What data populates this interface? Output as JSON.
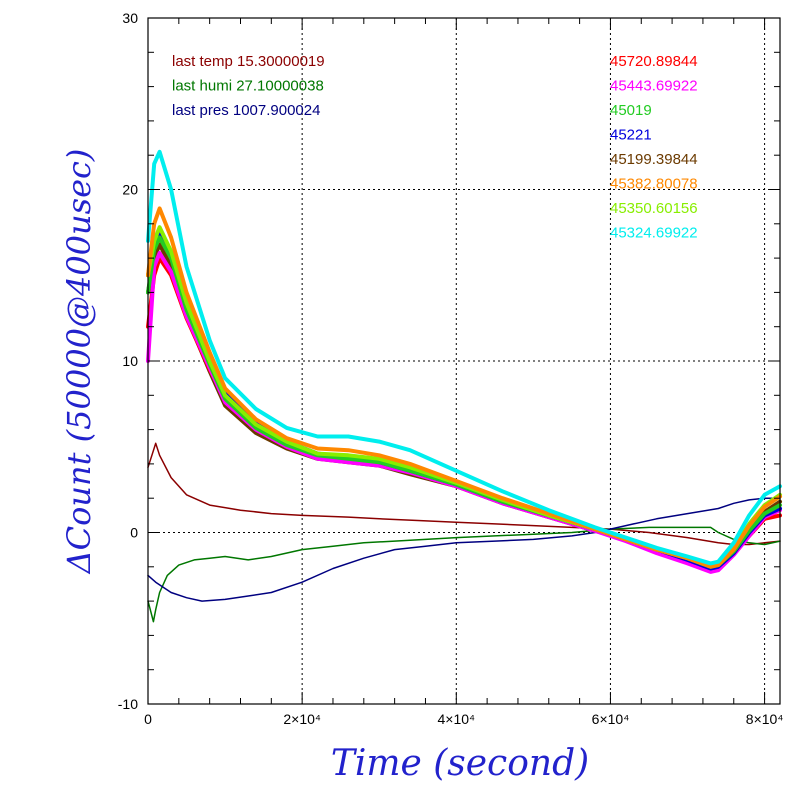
{
  "chart_data": {
    "type": "line",
    "title": "",
    "xlabel": "Time (second)",
    "ylabel": "ΔCount (50000@400usec)",
    "xlim": [
      0,
      82000
    ],
    "ylim": [
      -10,
      30
    ],
    "grid": true,
    "x_ticks": [
      {
        "value": 0,
        "label": "0"
      },
      {
        "value": 20000,
        "label": "2×10⁴"
      },
      {
        "value": 40000,
        "label": "4×10⁴"
      },
      {
        "value": 60000,
        "label": "6×10⁴"
      },
      {
        "value": 80000,
        "label": "8×10⁴"
      }
    ],
    "y_ticks": [
      {
        "value": -10,
        "label": "-10"
      },
      {
        "value": 0,
        "label": "0"
      },
      {
        "value": 10,
        "label": "10"
      },
      {
        "value": 20,
        "label": "20"
      },
      {
        "value": 30,
        "label": "30"
      }
    ],
    "legend_left": [
      {
        "text": "last temp 15.30000019",
        "color": "#8b0000"
      },
      {
        "text": "last humi 27.10000038",
        "color": "#007700"
      },
      {
        "text": "last pres 1007.900024",
        "color": "#000080"
      }
    ],
    "legend_right": [
      {
        "text": "45720.89844",
        "color": "#ff0000"
      },
      {
        "text": "45443.69922",
        "color": "#ff00ff"
      },
      {
        "text": "45019",
        "color": "#22cc22"
      },
      {
        "text": "45221",
        "color": "#0000dd"
      },
      {
        "text": "45199.39844",
        "color": "#6b3a00"
      },
      {
        "text": "45382.80078",
        "color": "#ff8800"
      },
      {
        "text": "45350.60156",
        "color": "#88ee00"
      },
      {
        "text": "45324.69922",
        "color": "#00eeee"
      }
    ],
    "series": [
      {
        "name": "45720.89844",
        "color": "#ff0000",
        "width": 4,
        "x": [
          0,
          800,
          1500,
          3000,
          5000,
          8000,
          10000,
          14000,
          18000,
          22000,
          26000,
          30000,
          34000,
          40000,
          46000,
          52000,
          58000,
          62000,
          66000,
          70000,
          73000,
          74000,
          76000,
          78000,
          80000,
          82000
        ],
        "y": [
          12,
          15,
          16,
          15,
          12.5,
          9.5,
          7.8,
          6.2,
          5.2,
          4.5,
          4.3,
          4.1,
          3.6,
          2.8,
          1.8,
          1.0,
          0.2,
          -0.4,
          -1.0,
          -1.6,
          -2.1,
          -2.0,
          -1.2,
          -0.2,
          0.8,
          1.0
        ]
      },
      {
        "name": "45443.69922",
        "color": "#ff00ff",
        "width": 4,
        "x": [
          0,
          800,
          1500,
          3000,
          5000,
          8000,
          10000,
          14000,
          18000,
          22000,
          26000,
          30000,
          34000,
          40000,
          46000,
          52000,
          58000,
          62000,
          66000,
          70000,
          73000,
          74000,
          76000,
          78000,
          80000,
          82000
        ],
        "y": [
          10,
          15.5,
          16.3,
          15.2,
          12.6,
          9.6,
          7.6,
          6.0,
          5.0,
          4.3,
          4.1,
          3.9,
          3.5,
          2.7,
          1.7,
          0.9,
          0.1,
          -0.5,
          -1.2,
          -1.8,
          -2.3,
          -2.2,
          -1.3,
          -0.2,
          0.9,
          1.3
        ]
      },
      {
        "name": "45019",
        "color": "#22cc22",
        "width": 4,
        "x": [
          0,
          800,
          1500,
          3000,
          5000,
          8000,
          10000,
          14000,
          18000,
          22000,
          26000,
          30000,
          34000,
          40000,
          46000,
          52000,
          58000,
          62000,
          66000,
          70000,
          73000,
          74000,
          76000,
          78000,
          80000,
          82000
        ],
        "y": [
          14,
          16.5,
          17.2,
          16,
          13,
          9.8,
          7.8,
          6.1,
          5.1,
          4.5,
          4.3,
          4.1,
          3.6,
          2.8,
          1.8,
          1.0,
          0.2,
          -0.4,
          -1.0,
          -1.5,
          -2.0,
          -1.9,
          -1.1,
          0.1,
          1.1,
          1.6
        ]
      },
      {
        "name": "45221",
        "color": "#0000dd",
        "width": 4,
        "x": [
          0,
          800,
          1500,
          3000,
          5000,
          8000,
          10000,
          14000,
          18000,
          22000,
          26000,
          30000,
          34000,
          40000,
          46000,
          52000,
          58000,
          62000,
          66000,
          70000,
          73000,
          74000,
          76000,
          78000,
          80000,
          82000
        ],
        "y": [
          15,
          17,
          17.4,
          16.2,
          13.3,
          10.2,
          8.2,
          6.4,
          5.3,
          4.6,
          4.4,
          4.1,
          3.6,
          2.8,
          1.8,
          1.0,
          0.2,
          -0.4,
          -1.0,
          -1.6,
          -2.1,
          -2.0,
          -1.2,
          0.0,
          1.0,
          1.4
        ]
      },
      {
        "name": "45199.39844",
        "color": "#6b3a00",
        "width": 4,
        "x": [
          0,
          800,
          1500,
          3000,
          5000,
          8000,
          10000,
          14000,
          18000,
          22000,
          26000,
          30000,
          34000,
          40000,
          46000,
          52000,
          58000,
          62000,
          66000,
          70000,
          73000,
          74000,
          76000,
          78000,
          80000,
          82000
        ],
        "y": [
          14,
          16,
          16.8,
          15.5,
          12.6,
          9.4,
          7.4,
          5.8,
          4.9,
          4.3,
          4.1,
          3.9,
          3.4,
          2.7,
          1.7,
          0.9,
          0.1,
          -0.4,
          -1.0,
          -1.6,
          -2.0,
          -1.9,
          -1.0,
          0.2,
          1.2,
          1.8
        ]
      },
      {
        "name": "45382.80078",
        "color": "#ff8800",
        "width": 4,
        "x": [
          0,
          800,
          1500,
          3000,
          5000,
          8000,
          10000,
          14000,
          18000,
          22000,
          26000,
          30000,
          34000,
          40000,
          46000,
          52000,
          58000,
          62000,
          66000,
          70000,
          73000,
          74000,
          76000,
          78000,
          80000,
          82000
        ],
        "y": [
          15,
          18,
          18.9,
          17.2,
          14,
          10.5,
          8.4,
          6.6,
          5.5,
          4.9,
          4.8,
          4.5,
          4.0,
          3.0,
          2.0,
          1.1,
          0.2,
          -0.4,
          -1.0,
          -1.5,
          -2.0,
          -1.9,
          -1.0,
          0.4,
          1.5,
          2.1
        ]
      },
      {
        "name": "45350.60156",
        "color": "#88ee00",
        "width": 4,
        "x": [
          0,
          800,
          1500,
          3000,
          5000,
          8000,
          10000,
          14000,
          18000,
          22000,
          26000,
          30000,
          34000,
          40000,
          46000,
          52000,
          58000,
          62000,
          66000,
          70000,
          73000,
          74000,
          76000,
          78000,
          80000,
          82000
        ],
        "y": [
          15,
          17,
          17.8,
          16.4,
          13.4,
          10,
          8.0,
          6.3,
          5.3,
          4.6,
          4.5,
          4.3,
          3.8,
          2.9,
          1.9,
          1.0,
          0.2,
          -0.4,
          -1.0,
          -1.5,
          -1.9,
          -1.8,
          -0.9,
          0.5,
          1.6,
          2.2
        ]
      },
      {
        "name": "45324.69922",
        "color": "#00eeee",
        "width": 4,
        "x": [
          0,
          800,
          1500,
          3000,
          5000,
          8000,
          10000,
          14000,
          18000,
          22000,
          26000,
          30000,
          34000,
          40000,
          46000,
          52000,
          58000,
          62000,
          66000,
          70000,
          73000,
          74000,
          76000,
          78000,
          80000,
          82000
        ],
        "y": [
          17,
          21.5,
          22.2,
          20,
          15.5,
          11.2,
          9.0,
          7.2,
          6.1,
          5.6,
          5.6,
          5.3,
          4.8,
          3.6,
          2.4,
          1.3,
          0.3,
          -0.3,
          -0.9,
          -1.4,
          -1.8,
          -1.7,
          -0.6,
          1.0,
          2.2,
          2.7
        ]
      },
      {
        "name": "last temp",
        "color": "#8b0000",
        "width": 1.5,
        "x": [
          0,
          500,
          1000,
          1500,
          3000,
          5000,
          8000,
          12000,
          16000,
          20000,
          26000,
          30000,
          35000,
          40000,
          45000,
          50000,
          55000,
          60000,
          65000,
          70000,
          74000,
          76000,
          78000,
          80000,
          82000
        ],
        "y": [
          3.8,
          4.5,
          5.2,
          4.5,
          3.2,
          2.2,
          1.6,
          1.3,
          1.1,
          1.0,
          0.9,
          0.8,
          0.7,
          0.6,
          0.5,
          0.4,
          0.3,
          0.2,
          0.0,
          -0.3,
          -0.6,
          -0.7,
          -0.7,
          -0.6,
          -0.5
        ]
      },
      {
        "name": "last humi",
        "color": "#007700",
        "width": 1.5,
        "x": [
          0,
          300,
          700,
          1000,
          1500,
          2500,
          4000,
          6000,
          8000,
          10000,
          13000,
          16000,
          20000,
          24000,
          28000,
          32000,
          36000,
          40000,
          45000,
          50000,
          55000,
          60000,
          65000,
          70000,
          73000,
          74000,
          76000,
          78000,
          80000,
          82000
        ],
        "y": [
          -4.0,
          -4.5,
          -5.2,
          -4.5,
          -3.5,
          -2.5,
          -1.9,
          -1.6,
          -1.5,
          -1.4,
          -1.6,
          -1.4,
          -1.0,
          -0.8,
          -0.6,
          -0.5,
          -0.4,
          -0.3,
          -0.2,
          -0.1,
          0.0,
          0.2,
          0.3,
          0.3,
          0.3,
          0.0,
          -0.4,
          -0.6,
          -0.7,
          -0.5
        ]
      },
      {
        "name": "last pres",
        "color": "#000080",
        "width": 1.5,
        "x": [
          0,
          1000,
          2000,
          3000,
          5000,
          7000,
          10000,
          13000,
          16000,
          20000,
          24000,
          28000,
          32000,
          36000,
          40000,
          45000,
          50000,
          55000,
          58000,
          60000,
          63000,
          66000,
          70000,
          74000,
          76000,
          78000,
          80000,
          82000
        ],
        "y": [
          -2.5,
          -2.9,
          -3.2,
          -3.5,
          -3.8,
          -4.0,
          -3.9,
          -3.7,
          -3.5,
          -2.9,
          -2.1,
          -1.5,
          -1.0,
          -0.8,
          -0.6,
          -0.5,
          -0.4,
          -0.2,
          0.0,
          0.2,
          0.5,
          0.8,
          1.1,
          1.4,
          1.7,
          1.9,
          2.0,
          2.0
        ]
      }
    ]
  }
}
